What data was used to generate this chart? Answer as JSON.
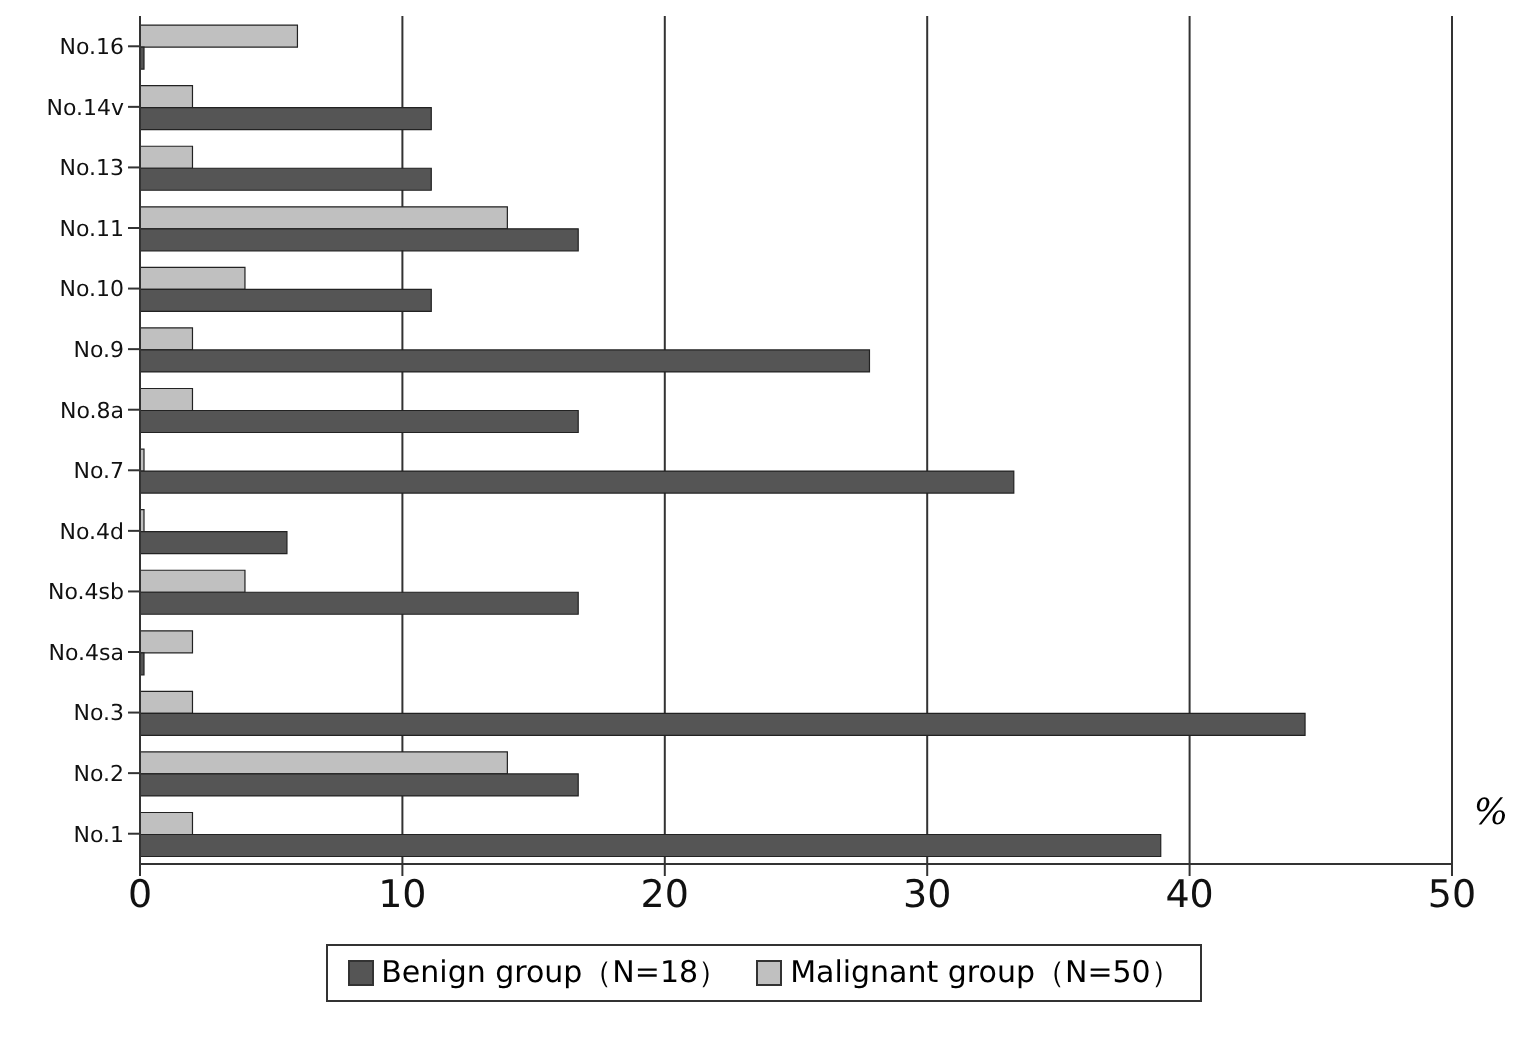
{
  "chart_data": {
    "type": "bar",
    "orientation": "horizontal",
    "xlabel": "%",
    "categories": [
      "No.16",
      "No.14v",
      "No.13",
      "No.11",
      "No.10",
      "No.9",
      "No.8a",
      "No.7",
      "No.4d",
      "No.4sb",
      "No.4sa",
      "No.3",
      "No.2",
      "No.1"
    ],
    "series": [
      {
        "name": "Benign group（N=18）",
        "color": "#555555",
        "values": [
          0,
          11.1,
          11.1,
          16.7,
          11.1,
          27.8,
          16.7,
          33.3,
          5.6,
          16.7,
          0,
          44.4,
          16.7,
          38.9
        ]
      },
      {
        "name": "Malignant group（N=50）",
        "color": "#c0c0c0",
        "values": [
          6,
          2,
          2,
          14,
          4,
          2,
          2,
          0,
          0,
          4,
          2,
          2,
          14,
          2
        ]
      }
    ],
    "xlim": [
      0,
      50
    ],
    "xticks": [
      0,
      10,
      20,
      30,
      40,
      50
    ],
    "grid": "x",
    "legend": "bottom"
  }
}
